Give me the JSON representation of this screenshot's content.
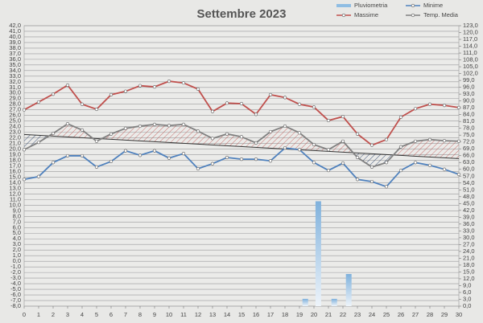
{
  "chart_data": {
    "type": "line",
    "title": "Settembre 2023",
    "x": [
      0,
      1,
      2,
      3,
      4,
      5,
      6,
      7,
      8,
      9,
      10,
      11,
      12,
      13,
      14,
      15,
      16,
      17,
      18,
      19,
      20,
      21,
      22,
      23,
      24,
      25,
      26,
      27,
      28,
      29,
      30
    ],
    "xlim": [
      0,
      30
    ],
    "xticks": [
      0,
      1,
      2,
      3,
      4,
      5,
      6,
      7,
      8,
      9,
      10,
      11,
      12,
      13,
      14,
      15,
      16,
      17,
      18,
      19,
      20,
      21,
      22,
      23,
      24,
      25,
      26,
      27,
      28,
      29,
      30
    ],
    "ylim": [
      -8,
      42
    ],
    "yticks": [
      {
        "value": -8,
        "label": "-8,0"
      },
      {
        "value": -7,
        "label": "-7,0"
      },
      {
        "value": -6,
        "label": "-6,0"
      },
      {
        "value": -5,
        "label": "-5,0"
      },
      {
        "value": -4,
        "label": "-4,0"
      },
      {
        "value": -3,
        "label": "-3,0"
      },
      {
        "value": -2,
        "label": "-2,0"
      },
      {
        "value": -1,
        "label": "-1,0"
      },
      {
        "value": 0,
        "label": "0,0"
      },
      {
        "value": 1,
        "label": "1,0"
      },
      {
        "value": 2,
        "label": "2,0"
      },
      {
        "value": 3,
        "label": "3,0"
      },
      {
        "value": 4,
        "label": "4,0"
      },
      {
        "value": 5,
        "label": "5,0"
      },
      {
        "value": 6,
        "label": "6,0"
      },
      {
        "value": 7,
        "label": "7,0"
      },
      {
        "value": 8,
        "label": "8,0"
      },
      {
        "value": 9,
        "label": "9,0"
      },
      {
        "value": 10,
        "label": "10,0"
      },
      {
        "value": 11,
        "label": "11,0"
      },
      {
        "value": 12,
        "label": "12,0"
      },
      {
        "value": 13,
        "label": "13,0"
      },
      {
        "value": 14,
        "label": "14,0"
      },
      {
        "value": 15,
        "label": "15,0"
      },
      {
        "value": 16,
        "label": "16,0"
      },
      {
        "value": 17,
        "label": "17,0"
      },
      {
        "value": 18,
        "label": "18,0"
      },
      {
        "value": 19,
        "label": "19,0"
      },
      {
        "value": 20,
        "label": "20,0"
      },
      {
        "value": 21,
        "label": "21,0"
      },
      {
        "value": 22,
        "label": "22,0"
      },
      {
        "value": 23,
        "label": "23,0"
      },
      {
        "value": 24,
        "label": "24,0"
      },
      {
        "value": 25,
        "label": "25,0"
      },
      {
        "value": 26,
        "label": "26,0"
      },
      {
        "value": 27,
        "label": "27,0"
      },
      {
        "value": 28,
        "label": "28,0"
      },
      {
        "value": 29,
        "label": "29,0"
      },
      {
        "value": 30,
        "label": "30,0"
      },
      {
        "value": 31,
        "label": "31,0"
      },
      {
        "value": 32,
        "label": "32,0"
      },
      {
        "value": 33,
        "label": "33,0"
      },
      {
        "value": 34,
        "label": "34,0"
      },
      {
        "value": 35,
        "label": "35,0"
      },
      {
        "value": 36,
        "label": "36,0"
      },
      {
        "value": 37,
        "label": "37,0"
      },
      {
        "value": 38,
        "label": "38,0"
      },
      {
        "value": 39,
        "label": "39,0"
      },
      {
        "value": 40,
        "label": "40,0"
      },
      {
        "value": 41,
        "label": "41,0"
      },
      {
        "value": 42,
        "label": "42,0"
      }
    ],
    "y2lim": [
      0,
      123
    ],
    "y2ticks": [
      {
        "value": 0,
        "label": "0,0"
      },
      {
        "value": 3,
        "label": "3,0"
      },
      {
        "value": 6,
        "label": "6,0"
      },
      {
        "value": 9,
        "label": "9,0"
      },
      {
        "value": 12,
        "label": "12,0"
      },
      {
        "value": 15,
        "label": "15,0"
      },
      {
        "value": 18,
        "label": "18,0"
      },
      {
        "value": 21,
        "label": "21,0"
      },
      {
        "value": 24,
        "label": "24,0"
      },
      {
        "value": 27,
        "label": "27,0"
      },
      {
        "value": 30,
        "label": "30,0"
      },
      {
        "value": 33,
        "label": "33,0"
      },
      {
        "value": 36,
        "label": "36,0"
      },
      {
        "value": 39,
        "label": "39,0"
      },
      {
        "value": 42,
        "label": "42,0"
      },
      {
        "value": 45,
        "label": "45,0"
      },
      {
        "value": 48,
        "label": "48,0"
      },
      {
        "value": 51,
        "label": "51,0"
      },
      {
        "value": 54,
        "label": "54,0"
      },
      {
        "value": 57,
        "label": "57,0"
      },
      {
        "value": 60,
        "label": "60,0"
      },
      {
        "value": 63,
        "label": "63,0"
      },
      {
        "value": 66,
        "label": "66,0"
      },
      {
        "value": 69,
        "label": "69,0"
      },
      {
        "value": 72,
        "label": "72,0"
      },
      {
        "value": 75,
        "label": "75,0"
      },
      {
        "value": 78,
        "label": "78,0"
      },
      {
        "value": 81,
        "label": "81,0"
      },
      {
        "value": 84,
        "label": "84,0"
      },
      {
        "value": 87,
        "label": "87,0"
      },
      {
        "value": 90,
        "label": "90,0"
      },
      {
        "value": 93,
        "label": "93,0"
      },
      {
        "value": 96,
        "label": "96,0"
      },
      {
        "value": 99,
        "label": "99,0"
      },
      {
        "value": 102,
        "label": "102,0"
      },
      {
        "value": 105,
        "label": "105,0"
      },
      {
        "value": 108,
        "label": "108,0"
      },
      {
        "value": 111,
        "label": "111,0"
      },
      {
        "value": 114,
        "label": "114,0"
      },
      {
        "value": 117,
        "label": "117,0"
      },
      {
        "value": 120,
        "label": "120,0"
      },
      {
        "value": 123,
        "label": "123,0"
      }
    ],
    "grid": true,
    "series": [
      {
        "name": "Pluviometria",
        "type": "bar",
        "axis": "y2",
        "color": "#8fbde3",
        "x": [
          19.4,
          20.3,
          21.4,
          22.4
        ],
        "values": [
          3.2,
          46.0,
          3.2,
          14.1
        ]
      },
      {
        "name": "Minime",
        "color": "#4f81bd",
        "values": [
          14.6,
          15.1,
          17.6,
          18.8,
          18.8,
          16.8,
          17.8,
          19.7,
          18.9,
          19.7,
          18.4,
          19.2,
          16.5,
          17.4,
          18.5,
          18.2,
          18.2,
          17.9,
          20.2,
          19.9,
          17.6,
          16.2,
          17.5,
          14.6,
          14.2,
          13.3,
          16.2,
          17.6,
          17.1,
          16.4,
          15.5
        ]
      },
      {
        "name": "Massime",
        "color": "#c0504d",
        "values": [
          27.0,
          28.4,
          29.8,
          31.4,
          28.0,
          27.1,
          29.7,
          30.3,
          31.3,
          31.1,
          32.1,
          31.8,
          30.7,
          26.7,
          28.2,
          28.1,
          26.2,
          29.7,
          29.2,
          28.0,
          27.5,
          25.1,
          25.8,
          22.7,
          20.7,
          21.7,
          25.7,
          27.2,
          28.0,
          27.8,
          27.4
        ]
      },
      {
        "name": "Temp. Media",
        "color": "#808080",
        "values": [
          19.9,
          21.2,
          22.8,
          24.5,
          23.4,
          21.4,
          22.7,
          23.7,
          24.1,
          24.4,
          24.2,
          24.4,
          23.2,
          21.9,
          22.7,
          22.2,
          21.1,
          23.1,
          24.1,
          22.9,
          20.8,
          19.9,
          21.4,
          18.5,
          16.8,
          17.6,
          20.4,
          21.4,
          21.7,
          21.5,
          21.4
        ]
      }
    ],
    "trend": {
      "x": [
        0,
        30
      ],
      "values": [
        22.6,
        18.3
      ],
      "color": "#333333"
    }
  }
}
